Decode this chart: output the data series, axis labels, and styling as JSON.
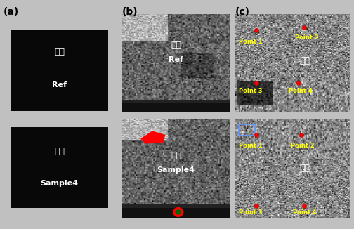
{
  "fig_width": 5.04,
  "fig_height": 3.26,
  "dpi": 100,
  "bg_color": "#c0c0c0",
  "panel_labels": [
    "(a)",
    "(b)",
    "(c)"
  ],
  "panel_label_fontsize": 10,
  "col_a": {
    "bg_color": "#b0b0b0",
    "chip_color": "#080808",
    "top_label_korean": "정상",
    "top_label_english": "Ref",
    "bottom_label_korean": "불량",
    "bottom_label_english": "Sample4",
    "text_color": "#ffffff",
    "korean_fontsize": 9,
    "english_fontsize": 8
  },
  "col_b": {
    "top_label_korean": "정상",
    "top_label_english": "Ref",
    "bottom_label_korean": "불량",
    "bottom_label_english": "Sample4",
    "text_color": "#ffffff"
  },
  "col_c": {
    "top_label_korean": "정상",
    "bottom_label_korean": "불량",
    "text_color": "#ffffff",
    "point_color": "#ffff00",
    "dot_color": "#ff0000"
  }
}
